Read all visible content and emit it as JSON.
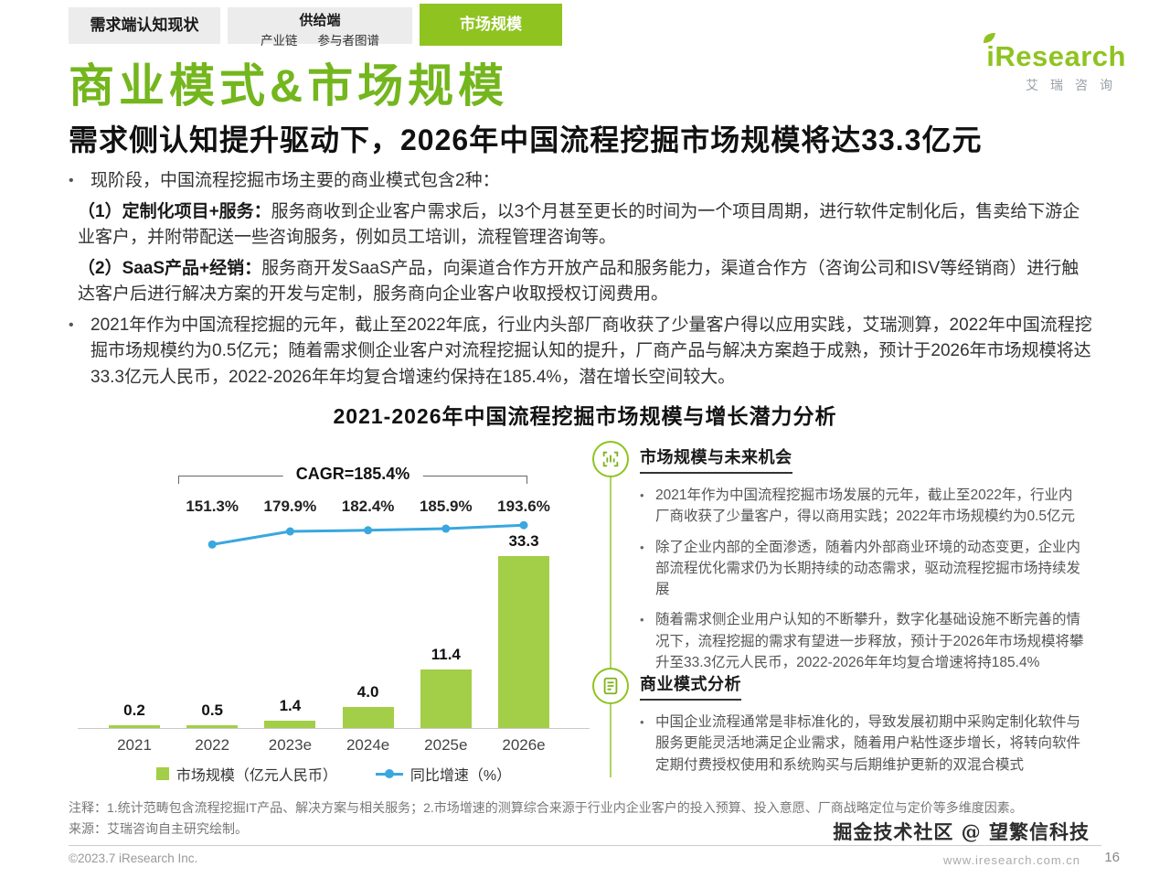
{
  "header": {
    "tabs": [
      {
        "label": "需求端认知现状"
      },
      {
        "label": "供给端",
        "sub_items": [
          "产业链",
          "参与者图谱"
        ]
      },
      {
        "label": "市场规模"
      }
    ],
    "logo": {
      "brand": "iResearch",
      "brand_cn": "艾瑞咨询"
    }
  },
  "page": {
    "title": "商业模式&市场规模",
    "subtitle": "需求侧认知提升驱动下，2026年中国流程挖掘市场规模将达33.3亿元"
  },
  "body": {
    "intro": "现阶段，中国流程挖掘市场主要的商业模式包含2种：",
    "model1_label": "（1）定制化项目+服务：",
    "model1_text": "服务商收到企业客户需求后，以3个月甚至更长的时间为一个项目周期，进行软件定制化后，售卖给下游企业客户，并附带配送一些咨询服务，例如员工培训，流程管理咨询等。",
    "model2_label": "（2）SaaS产品+经销：",
    "model2_text": "服务商开发SaaS产品，向渠道合作方开放产品和服务能力，渠道合作方（咨询公司和ISV等经销商）进行触达客户后进行解决方案的开发与定制，服务商向企业客户收取授权订阅费用。",
    "para": "2021年作为中国流程挖掘的元年，截止至2022年底，行业内头部厂商收获了少量客户得以应用实践，艾瑞测算，2022年中国流程挖掘市场规模约为0.5亿元；随着需求侧企业客户对流程挖掘认知的提升，厂商产品与解决方案趋于成熟，预计于2026年市场规模将达33.3亿元人民币，2022-2026年年均复合增速约保持在185.4%，潜在增长空间较大。"
  },
  "chart_data": {
    "type": "bar",
    "title": "2021-2026年中国流程挖掘市场规模与增长潜力分析",
    "categories": [
      "2021",
      "2022",
      "2023e",
      "2024e",
      "2025e",
      "2026e"
    ],
    "series": [
      {
        "name": "市场规模（亿元人民币）",
        "type": "bar",
        "color": "#A3CE48",
        "values": [
          0.2,
          0.5,
          1.4,
          4.0,
          11.4,
          33.3
        ]
      },
      {
        "name": "同比增速（%）",
        "type": "line",
        "color": "#3AA7DF",
        "values": [
          null,
          151.3,
          179.9,
          182.4,
          185.9,
          193.6
        ]
      }
    ],
    "cagr_label": "CAGR=185.4%",
    "ylim": [
      0,
      35
    ],
    "grid": false,
    "legend_position": "bottom"
  },
  "panel": {
    "sections": [
      {
        "icon": "scan-chart-icon",
        "title": "市场规模与未来机会",
        "bullets": [
          "2021年作为中国流程挖掘市场发展的元年，截止至2022年，行业内厂商收获了少量客户，得以商用实践；2022年市场规模约为0.5亿元",
          "除了企业内部的全面渗透，随着内外部商业环境的动态变更，企业内部流程优化需求仍为长期持续的动态需求，驱动流程挖掘市场持续发展",
          "随着需求侧企业用户认知的不断攀升，数字化基础设施不断完善的情况下，流程挖掘的需求有望进一步释放，预计于2026年市场规模将攀升至33.3亿元人民币，2022-2026年年均复合增速将持185.4%"
        ]
      },
      {
        "icon": "document-check-icon",
        "title": "商业模式分析",
        "bullets": [
          "中国企业流程通常是非标准化的，导致发展初期中采购定制化软件与服务更能灵活地满足企业需求，随着用户粘性逐步增长，将转向软件定期付费授权使用和系统购买与后期维护更新的双混合模式"
        ]
      }
    ]
  },
  "footer": {
    "note1": "注释：1.统计范畴包含流程挖掘IT产品、解决方案与相关服务；2.市场增速的测算综合来源于行业内企业客户的投入预算、投入意愿、厂商战略定位与定价等多维度因素。",
    "note2": "来源：艾瑞咨询自主研究绘制。",
    "copyright": "©2023.7 iResearch Inc.",
    "website": "www.iresearch.com.cn",
    "page_number": "16",
    "watermark": "掘金技术社区 @ 望繁信科技"
  }
}
